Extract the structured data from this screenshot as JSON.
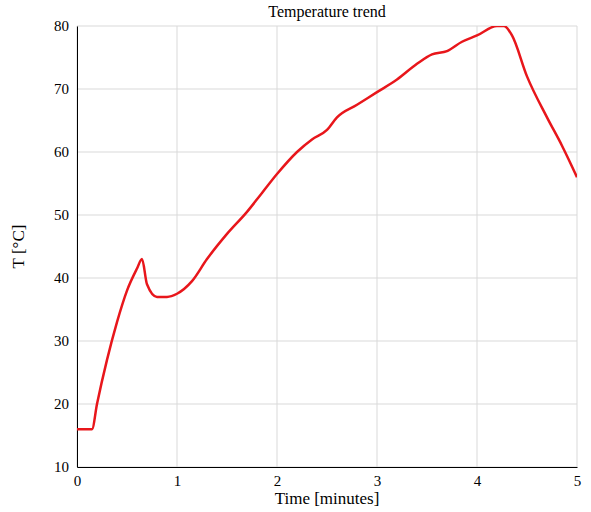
{
  "chart_data": {
    "type": "line",
    "title": "Temperature trend",
    "x_label": "Time [minutes]",
    "y_label": "T [°C]",
    "x": [
      0,
      0.15,
      0.2,
      0.3,
      0.4,
      0.5,
      0.6,
      0.65,
      0.7,
      0.8,
      0.9,
      1.0,
      1.15,
      1.3,
      1.5,
      1.7,
      1.85,
      2.0,
      2.2,
      2.35,
      2.5,
      2.6,
      2.8,
      3.0,
      3.2,
      3.4,
      3.55,
      3.7,
      3.85,
      4.0,
      4.2,
      4.27,
      4.35,
      4.5,
      4.7,
      4.85,
      5.0
    ],
    "values": [
      16,
      16,
      20,
      27,
      33,
      38,
      41.5,
      43,
      39,
      37,
      37,
      37.5,
      39.5,
      43,
      47,
      50.5,
      53.5,
      56.5,
      60,
      62,
      63.5,
      65.5,
      67.5,
      69.5,
      71.5,
      74,
      75.5,
      76,
      77.5,
      78.5,
      80,
      80,
      78.5,
      72,
      65.5,
      61,
      56
    ],
    "color": "#e8161b",
    "xlim": [
      0,
      5
    ],
    "xticks": [
      0,
      1,
      2,
      3,
      4,
      5
    ],
    "ylim": [
      10,
      80
    ],
    "yticks": [
      10,
      20,
      30,
      40,
      50,
      60,
      70,
      80
    ],
    "grid": true
  }
}
